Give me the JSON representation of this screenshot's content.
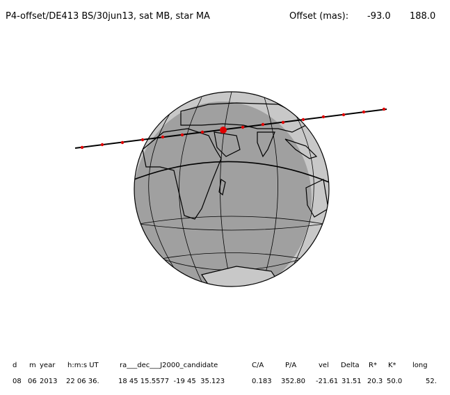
{
  "header": {
    "title": "P4-offset/DE413 BS/30jun13, sat MB, star MA",
    "offset_label": "Offset (mas):",
    "offset_values": [
      "-93.0",
      "188.0"
    ]
  },
  "table": {
    "columns": [
      "d",
      "m",
      "year",
      "h:m:s UT",
      "ra___dec___J2000_candidate",
      "C/A",
      "P/A",
      "vel",
      "Delta",
      "R*",
      "K*",
      "long"
    ],
    "rows": [
      [
        "08",
        "06",
        "2013",
        "22 06 36.",
        "18 45 15.5577  -19 45  35.123",
        "0.183",
        "352.80",
        "-21.61",
        "31.51",
        "20.3",
        "50.0",
        "52."
      ]
    ]
  }
}
